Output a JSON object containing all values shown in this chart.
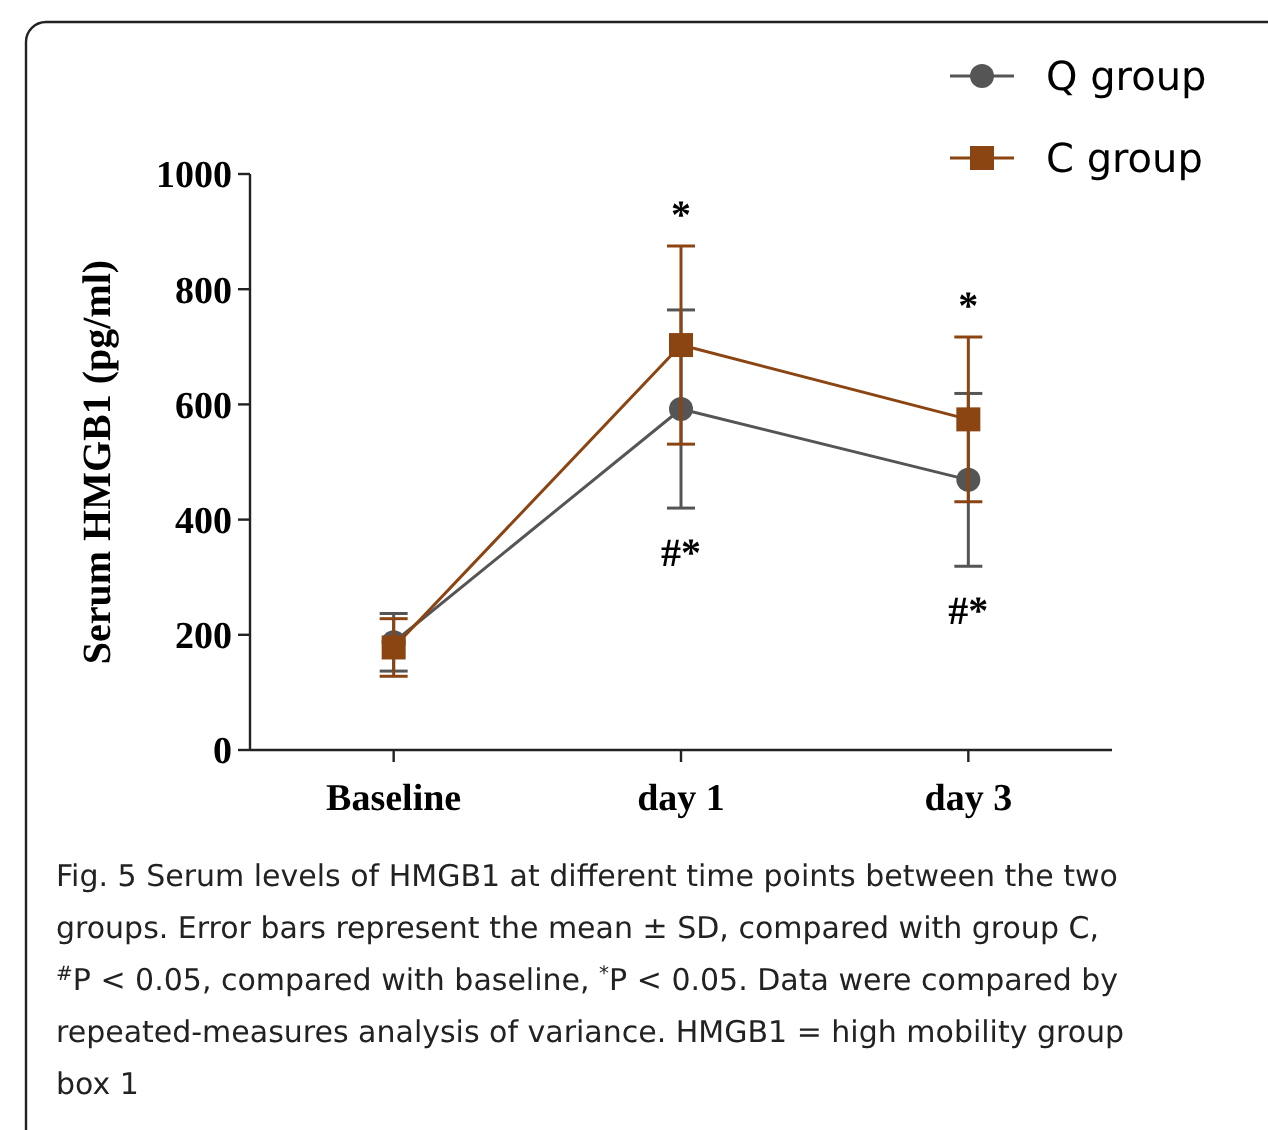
{
  "chart_data": {
    "type": "line",
    "categories": [
      "Baseline",
      "day 1",
      "day 3"
    ],
    "ylabel": "Serum HMGB1 (pg/ml)",
    "ylim": [
      0,
      1000
    ],
    "yticks": [
      0,
      200,
      400,
      600,
      800,
      1000
    ],
    "grid": false,
    "legend": "top right",
    "line_style": "solid",
    "series": [
      {
        "name": "Q group",
        "color": "#555555",
        "marker": "circle",
        "values": [
          187,
          592,
          469
        ],
        "errors": [
          50,
          172,
          150
        ]
      },
      {
        "name": "C group",
        "color": "#8b4513",
        "marker": "square",
        "values": [
          178,
          703,
          574
        ],
        "errors": [
          50,
          172,
          143
        ]
      }
    ],
    "annotations": [
      "*",
      "#*",
      "*",
      "#*",
      "Fig. 5 Serum levels of HMGB1 at different time points between the two groups. Error bars represent the mean ± SD, compared with group C, $^{#}$P < 0.05, compared with baseline, $^{*}$P < 0.05. Data were compared by repeated-measures analysis of variance. HMGB1 = high mobility group box 1"
    ]
  }
}
